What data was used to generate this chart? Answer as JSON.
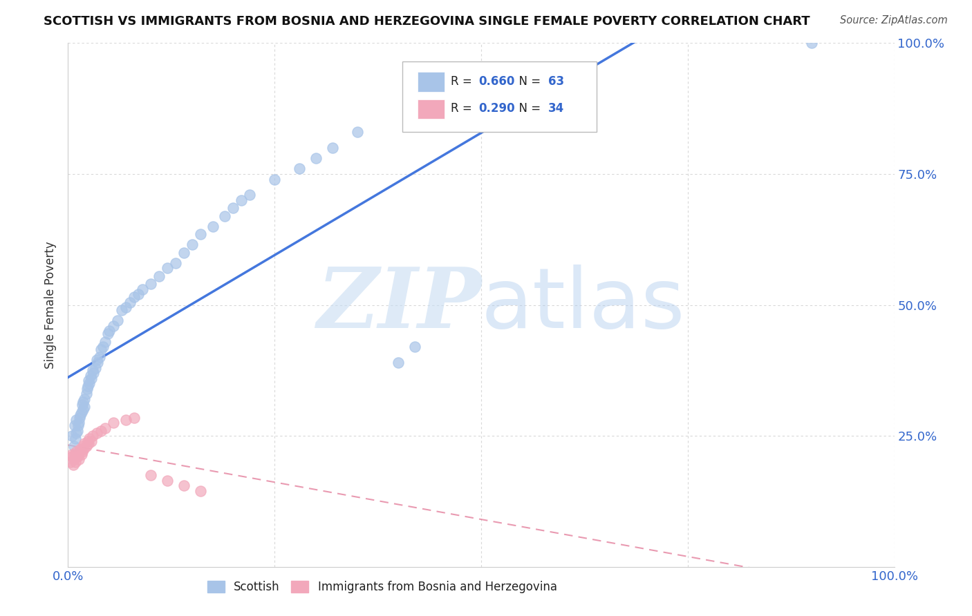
{
  "title": "SCOTTISH VS IMMIGRANTS FROM BOSNIA AND HERZEGOVINA SINGLE FEMALE POVERTY CORRELATION CHART",
  "source": "Source: ZipAtlas.com",
  "ylabel": "Single Female Poverty",
  "legend_label_1": "Scottish",
  "legend_label_2": "Immigrants from Bosnia and Herzegovina",
  "r1": 0.66,
  "n1": 63,
  "r2": 0.29,
  "n2": 34,
  "color1": "#a8c4e8",
  "color2": "#f2a8bb",
  "line1_color": "#4477dd",
  "line2_color": "#e07090",
  "background_color": "#ffffff",
  "grid_color": "#d8d8d8",
  "xlim": [
    0,
    1
  ],
  "ylim": [
    0,
    1
  ],
  "scottish_x": [
    0.005,
    0.007,
    0.008,
    0.009,
    0.01,
    0.01,
    0.011,
    0.012,
    0.013,
    0.014,
    0.015,
    0.016,
    0.017,
    0.018,
    0.018,
    0.02,
    0.02,
    0.022,
    0.023,
    0.024,
    0.025,
    0.026,
    0.027,
    0.028,
    0.03,
    0.031,
    0.033,
    0.035,
    0.036,
    0.038,
    0.04,
    0.042,
    0.045,
    0.048,
    0.05,
    0.055,
    0.06,
    0.065,
    0.07,
    0.075,
    0.08,
    0.085,
    0.09,
    0.1,
    0.11,
    0.12,
    0.13,
    0.14,
    0.15,
    0.16,
    0.175,
    0.19,
    0.2,
    0.21,
    0.22,
    0.25,
    0.28,
    0.3,
    0.32,
    0.35,
    0.4,
    0.42,
    0.9
  ],
  "scottish_y": [
    0.25,
    0.23,
    0.27,
    0.245,
    0.28,
    0.255,
    0.26,
    0.27,
    0.275,
    0.285,
    0.29,
    0.295,
    0.31,
    0.315,
    0.3,
    0.32,
    0.305,
    0.33,
    0.34,
    0.345,
    0.355,
    0.35,
    0.365,
    0.36,
    0.375,
    0.37,
    0.38,
    0.395,
    0.39,
    0.4,
    0.415,
    0.42,
    0.43,
    0.445,
    0.45,
    0.46,
    0.47,
    0.49,
    0.495,
    0.505,
    0.515,
    0.52,
    0.53,
    0.54,
    0.555,
    0.57,
    0.58,
    0.6,
    0.615,
    0.635,
    0.65,
    0.67,
    0.685,
    0.7,
    0.71,
    0.74,
    0.76,
    0.78,
    0.8,
    0.83,
    0.39,
    0.42,
    1.0
  ],
  "bosnian_x": [
    0.003,
    0.005,
    0.005,
    0.006,
    0.007,
    0.008,
    0.009,
    0.01,
    0.011,
    0.012,
    0.013,
    0.014,
    0.015,
    0.016,
    0.017,
    0.018,
    0.019,
    0.02,
    0.022,
    0.024,
    0.025,
    0.026,
    0.028,
    0.03,
    0.035,
    0.04,
    0.045,
    0.055,
    0.07,
    0.08,
    0.1,
    0.12,
    0.14,
    0.16
  ],
  "bosnian_y": [
    0.2,
    0.21,
    0.215,
    0.195,
    0.205,
    0.215,
    0.2,
    0.22,
    0.21,
    0.215,
    0.205,
    0.22,
    0.225,
    0.215,
    0.22,
    0.23,
    0.225,
    0.235,
    0.23,
    0.24,
    0.235,
    0.245,
    0.24,
    0.25,
    0.255,
    0.26,
    0.265,
    0.275,
    0.28,
    0.285,
    0.175,
    0.165,
    0.155,
    0.145
  ]
}
